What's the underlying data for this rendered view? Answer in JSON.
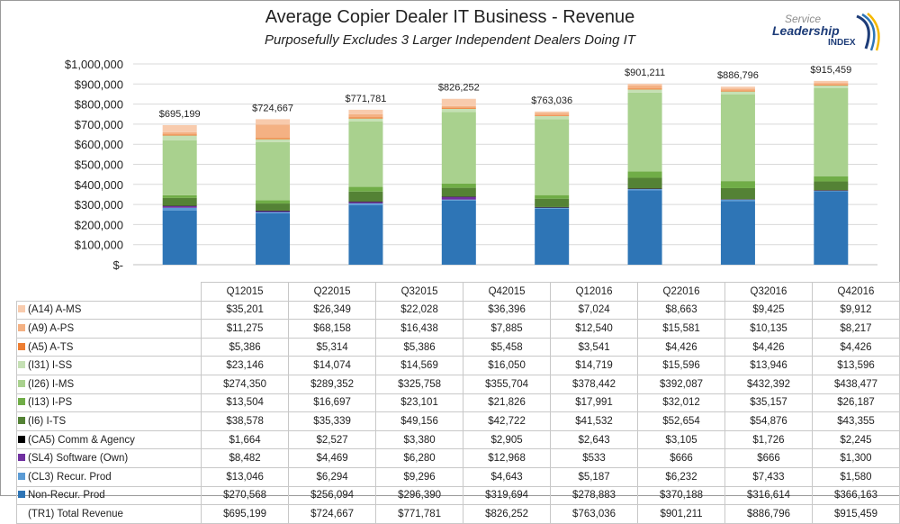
{
  "header": {
    "title": "Average Copier Dealer IT Business - Revenue",
    "subtitle": "Purposefully Excludes 3 Larger Independent Dealers Doing IT"
  },
  "logo": {
    "line1": "Service",
    "line2": "Leadership",
    "line3": "INDEX"
  },
  "colors": {
    "a_ms": "#f8cbad",
    "a_ps": "#f4b183",
    "a_ts": "#ed7d31",
    "i_ss": "#c5e0b4",
    "i_ms": "#a9d18e",
    "i_ps": "#70ad47",
    "i_ts": "#548235",
    "comm": "#000000",
    "software": "#7030a0",
    "recur": "#5b9bd5",
    "nonrecur": "#2e75b6"
  },
  "chart_data": {
    "type": "bar",
    "stacked": true,
    "title": "Average Copier Dealer IT Business - Revenue",
    "subtitle": "Purposefully Excludes 3 Larger Independent Dealers Doing IT",
    "categories": [
      "Q12015",
      "Q22015",
      "Q32015",
      "Q42015",
      "Q12016",
      "Q22016",
      "Q32016",
      "Q42016"
    ],
    "ylim": [
      0,
      1000000
    ],
    "yticks": [
      0,
      100000,
      200000,
      300000,
      400000,
      500000,
      600000,
      700000,
      800000,
      900000,
      1000000
    ],
    "ytick_labels": [
      "$-",
      "$100,000",
      "$200,000",
      "$300,000",
      "$400,000",
      "$500,000",
      "$600,000",
      "$700,000",
      "$800,000",
      "$900,000",
      "$1,000,000"
    ],
    "grid": true,
    "legend": "data-table",
    "total_labels": [
      "$695,199",
      "$724,667",
      "$771,781",
      "$826,252",
      "$763,036",
      "$901,211",
      "$886,796",
      "$915,459"
    ],
    "series": [
      {
        "name": "(A14) A-MS",
        "color_key": "a_ms",
        "values": [
          35201,
          26349,
          22028,
          36396,
          7024,
          8663,
          9425,
          9912
        ],
        "labels": [
          "$35,201",
          "$26,349",
          "$22,028",
          "$36,396",
          "$7,024",
          "$8,663",
          "$9,425",
          "$9,912"
        ]
      },
      {
        "name": "(A9) A-PS",
        "color_key": "a_ps",
        "values": [
          11275,
          68158,
          16438,
          7885,
          12540,
          15581,
          10135,
          8217
        ],
        "labels": [
          "$11,275",
          "$68,158",
          "$16,438",
          "$7,885",
          "$12,540",
          "$15,581",
          "$10,135",
          "$8,217"
        ]
      },
      {
        "name": "(A5) A-TS",
        "color_key": "a_ts",
        "values": [
          5386,
          5314,
          5386,
          5458,
          3541,
          4426,
          4426,
          4426
        ],
        "labels": [
          "$5,386",
          "$5,314",
          "$5,386",
          "$5,458",
          "$3,541",
          "$4,426",
          "$4,426",
          "$4,426"
        ]
      },
      {
        "name": "(I31) I-SS",
        "color_key": "i_ss",
        "values": [
          23146,
          14074,
          14569,
          16050,
          14719,
          15596,
          13946,
          13596
        ],
        "labels": [
          "$23,146",
          "$14,074",
          "$14,569",
          "$16,050",
          "$14,719",
          "$15,596",
          "$13,946",
          "$13,596"
        ]
      },
      {
        "name": "(I26) I-MS",
        "color_key": "i_ms",
        "values": [
          274350,
          289352,
          325758,
          355704,
          378442,
          392087,
          432392,
          438477
        ],
        "labels": [
          "$274,350",
          "$289,352",
          "$325,758",
          "$355,704",
          "$378,442",
          "$392,087",
          "$432,392",
          "$438,477"
        ]
      },
      {
        "name": "(I13) I-PS",
        "color_key": "i_ps",
        "values": [
          13504,
          16697,
          23101,
          21826,
          17991,
          32012,
          35157,
          26187
        ],
        "labels": [
          "$13,504",
          "$16,697",
          "$23,101",
          "$21,826",
          "$17,991",
          "$32,012",
          "$35,157",
          "$26,187"
        ]
      },
      {
        "name": "(I6) I-TS",
        "color_key": "i_ts",
        "values": [
          38578,
          35339,
          49156,
          42722,
          41532,
          52654,
          54876,
          43355
        ],
        "labels": [
          "$38,578",
          "$35,339",
          "$49,156",
          "$42,722",
          "$41,532",
          "$52,654",
          "$54,876",
          "$43,355"
        ]
      },
      {
        "name": "(CA5) Comm & Agency",
        "color_key": "comm",
        "values": [
          1664,
          2527,
          3380,
          2905,
          2643,
          3105,
          1726,
          2245
        ],
        "labels": [
          "$1,664",
          "$2,527",
          "$3,380",
          "$2,905",
          "$2,643",
          "$3,105",
          "$1,726",
          "$2,245"
        ]
      },
      {
        "name": "(SL4) Software (Own)",
        "color_key": "software",
        "values": [
          8482,
          4469,
          6280,
          12968,
          533,
          666,
          666,
          1300
        ],
        "labels": [
          "$8,482",
          "$4,469",
          "$6,280",
          "$12,968",
          "$533",
          "$666",
          "$666",
          "$1,300"
        ]
      },
      {
        "name": "(CL3) Recur. Prod",
        "color_key": "recur",
        "values": [
          13046,
          6294,
          9296,
          4643,
          5187,
          6232,
          7433,
          1580
        ],
        "labels": [
          "$13,046",
          "$6,294",
          "$9,296",
          "$4,643",
          "$5,187",
          "$6,232",
          "$7,433",
          "$1,580"
        ]
      },
      {
        "name": "Non-Recur. Prod",
        "color_key": "nonrecur",
        "values": [
          270568,
          256094,
          296390,
          319694,
          278883,
          370188,
          316614,
          366163
        ],
        "labels": [
          "$270,568",
          "$256,094",
          "$296,390",
          "$319,694",
          "$278,883",
          "$370,188",
          "$316,614",
          "$366,163"
        ]
      }
    ],
    "total_row": {
      "name": "(TR1) Total Revenue",
      "values": [
        695199,
        724667,
        771781,
        826252,
        763036,
        901211,
        886796,
        915459
      ],
      "labels": [
        "$695,199",
        "$724,667",
        "$771,781",
        "$826,252",
        "$763,036",
        "$901,211",
        "$886,796",
        "$915,459"
      ]
    }
  }
}
